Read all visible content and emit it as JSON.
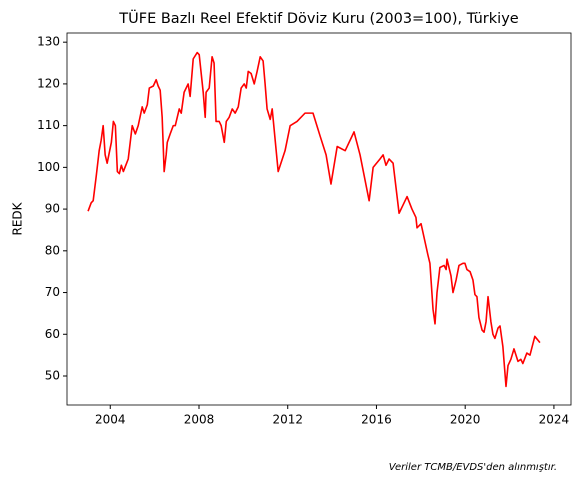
{
  "chart_data": {
    "type": "line",
    "title": "TÜFE Bazlı Reel Efektif Döviz Kuru (2003=100), Türkiye",
    "y_label": "REDK",
    "note": "Veriler TCMB/EVDS'den alınmıştır.",
    "xlim": [
      2002.05,
      2024.77
    ],
    "ylim": [
      43.05,
      132.2
    ],
    "xticks": [
      2004,
      2008,
      2012,
      2016,
      2020,
      2024
    ],
    "yticks": [
      50,
      60,
      70,
      80,
      90,
      100,
      110,
      120,
      130
    ],
    "series": [
      {
        "color": "#ff0000",
        "x": [
          2003.0,
          2003.14,
          2003.23,
          2003.37,
          2003.5,
          2003.59,
          2003.68,
          2003.77,
          2003.86,
          2004.05,
          2004.14,
          2004.23,
          2004.32,
          2004.41,
          2004.5,
          2004.59,
          2004.81,
          2004.99,
          2005.13,
          2005.26,
          2005.44,
          2005.53,
          2005.67,
          2005.76,
          2005.94,
          2006.07,
          2006.16,
          2006.25,
          2006.34,
          2006.43,
          2006.52,
          2006.57,
          2006.7,
          2006.84,
          2006.93,
          2007.11,
          2007.2,
          2007.33,
          2007.51,
          2007.6,
          2007.74,
          2007.92,
          2008.01,
          2008.19,
          2008.28,
          2008.32,
          2008.46,
          2008.59,
          2008.68,
          2008.77,
          2008.91,
          2009.0,
          2009.14,
          2009.23,
          2009.36,
          2009.5,
          2009.63,
          2009.77,
          2009.9,
          2010.04,
          2010.13,
          2010.22,
          2010.35,
          2010.49,
          2010.62,
          2010.76,
          2010.89,
          2010.98,
          2011.07,
          2011.21,
          2011.3,
          2011.57,
          2011.88,
          2012.11,
          2012.42,
          2012.78,
          2013.14,
          2013.46,
          2013.73,
          2013.95,
          2014.23,
          2014.59,
          2014.99,
          2015.26,
          2015.67,
          2015.85,
          2016.16,
          2016.3,
          2016.43,
          2016.57,
          2016.75,
          2017.02,
          2017.2,
          2017.38,
          2017.6,
          2017.78,
          2017.83,
          2018.01,
          2018.32,
          2018.41,
          2018.55,
          2018.64,
          2018.73,
          2018.86,
          2019.05,
          2019.14,
          2019.18,
          2019.36,
          2019.45,
          2019.59,
          2019.72,
          2019.9,
          2019.99,
          2020.08,
          2020.22,
          2020.35,
          2020.44,
          2020.53,
          2020.62,
          2020.76,
          2020.85,
          2020.94,
          2021.03,
          2021.16,
          2021.25,
          2021.34,
          2021.48,
          2021.57,
          2021.7,
          2021.84,
          2021.93,
          2022.06,
          2022.2,
          2022.38,
          2022.51,
          2022.6,
          2022.78,
          2022.92,
          2023.14,
          2023.37
        ],
        "values": [
          89.5,
          91.5,
          92,
          98,
          104,
          106.5,
          110,
          103,
          101,
          106,
          111,
          110,
          99,
          98.5,
          100.5,
          99,
          102,
          110,
          108,
          110,
          114.5,
          113,
          115,
          119,
          119.5,
          121,
          119.5,
          118.5,
          112,
          99,
          103,
          106,
          108,
          110,
          110,
          114,
          113,
          118,
          120,
          117,
          126,
          127.5,
          127,
          118,
          112,
          118,
          119,
          126.5,
          125,
          111,
          111,
          110,
          106,
          111,
          112,
          114,
          113,
          114.5,
          119,
          120,
          119,
          123,
          122.5,
          120,
          123,
          126.5,
          125.5,
          120,
          114,
          111.5,
          114,
          99,
          104,
          110,
          111,
          113,
          113,
          107.5,
          103,
          96,
          105,
          104,
          108.5,
          103,
          92,
          100,
          102,
          103,
          100.5,
          102,
          101,
          89,
          91,
          93,
          90,
          88,
          85.5,
          86.5,
          79,
          77,
          66,
          62.5,
          70,
          76,
          76.5,
          75.5,
          78,
          74,
          70,
          73,
          76.5,
          77,
          77,
          75.5,
          75,
          73,
          69.5,
          69,
          64,
          61,
          60.5,
          63,
          69,
          63,
          60,
          59,
          61.5,
          62,
          57,
          47.5,
          52.5,
          54,
          56.5,
          53.5,
          54,
          53,
          55.5,
          55,
          59.5,
          58
        ]
      }
    ]
  }
}
